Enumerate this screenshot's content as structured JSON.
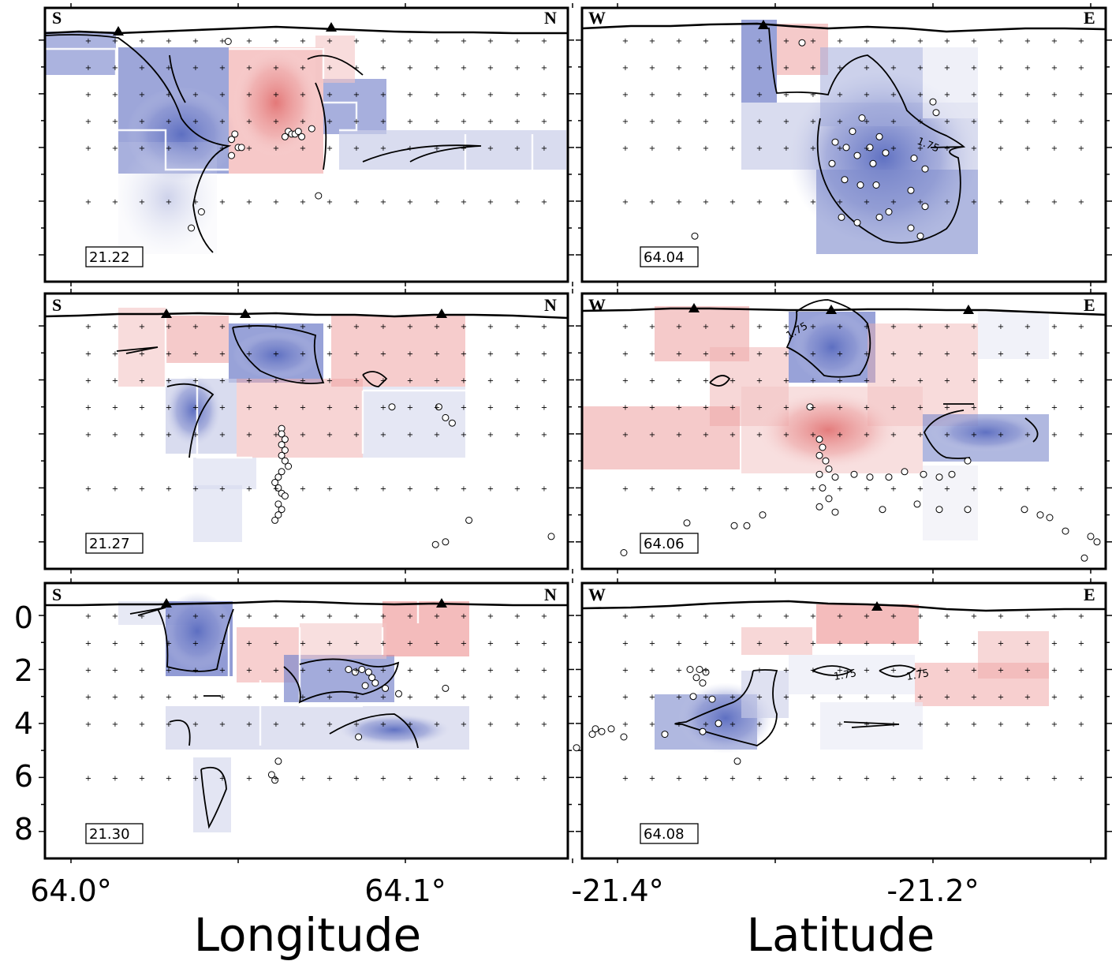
{
  "chart_data": {
    "type": "cross-section panels (velocity ratio anomaly)",
    "colors": {
      "positive": "#e06a6a",
      "negative": "#5a6cc0",
      "contour": "#000000",
      "earthquake_fill": "#ffffff"
    },
    "contour_label": "1.75",
    "depth_axis": {
      "ticks": [
        "0",
        "2",
        "4",
        "6",
        "8"
      ],
      "range": [
        -1.2,
        9.0
      ],
      "inverted": true
    },
    "columns": [
      {
        "title": "Longitude",
        "tick_labels": [
          "64.0°",
          "64.1°"
        ],
        "left_end": "S",
        "right_end": "N",
        "panels": [
          {
            "slice": "21.22",
            "earthquakes": [
              [
                64.047,
                0.05
              ],
              [
                64.049,
                3.5
              ],
              [
                64.048,
                3.7
              ],
              [
                64.05,
                4.0
              ],
              [
                64.051,
                4.0
              ],
              [
                64.048,
                4.3
              ],
              [
                64.064,
                3.6
              ],
              [
                64.065,
                3.4
              ],
              [
                64.066,
                3.5
              ],
              [
                64.067,
                3.5
              ],
              [
                64.068,
                3.4
              ],
              [
                64.069,
                3.6
              ],
              [
                64.072,
                3.3
              ],
              [
                64.074,
                5.8
              ],
              [
                64.039,
                6.4
              ],
              [
                64.036,
                7.0
              ]
            ]
          },
          {
            "slice": "21.27",
            "earthquakes": [
              [
                64.063,
                3.8
              ],
              [
                64.063,
                4.0
              ],
              [
                64.064,
                4.2
              ],
              [
                64.063,
                4.4
              ],
              [
                64.064,
                4.6
              ],
              [
                64.063,
                4.8
              ],
              [
                64.064,
                5.0
              ],
              [
                64.065,
                5.2
              ],
              [
                64.063,
                5.4
              ],
              [
                64.062,
                5.6
              ],
              [
                64.061,
                5.8
              ],
              [
                64.062,
                6.0
              ],
              [
                64.063,
                6.2
              ],
              [
                64.064,
                6.3
              ],
              [
                64.062,
                6.6
              ],
              [
                64.063,
                6.8
              ],
              [
                64.062,
                7.0
              ],
              [
                64.061,
                7.2
              ],
              [
                64.096,
                3.0
              ],
              [
                64.11,
                3.0
              ],
              [
                64.112,
                3.4
              ],
              [
                64.114,
                3.6
              ],
              [
                64.119,
                7.2
              ],
              [
                64.112,
                8.0
              ],
              [
                64.109,
                8.1
              ]
            ]
          },
          {
            "slice": "21.30",
            "earthquakes": [
              [
                64.083,
                2.0
              ],
              [
                64.085,
                2.1
              ],
              [
                64.087,
                2.0
              ],
              [
                64.089,
                2.1
              ],
              [
                64.09,
                2.3
              ],
              [
                64.091,
                2.5
              ],
              [
                64.088,
                2.6
              ],
              [
                64.094,
                2.7
              ],
              [
                64.098,
                2.9
              ],
              [
                64.112,
                2.7
              ],
              [
                64.086,
                4.5
              ],
              [
                64.062,
                5.4
              ],
              [
                64.06,
                5.9
              ],
              [
                64.061,
                6.1
              ]
            ]
          }
        ]
      },
      {
        "title": "Latitude",
        "tick_labels": [
          "-21.4°",
          "-21.2°"
        ],
        "left_end": "W",
        "right_end": "E",
        "panels": [
          {
            "slice": "64.04",
            "earthquakes": [
              [
                -21.283,
                0.1
              ],
              [
                -21.2,
                2.3
              ],
              [
                -21.198,
                2.7
              ],
              [
                -21.245,
                2.9
              ],
              [
                -21.251,
                3.4
              ],
              [
                -21.234,
                3.6
              ],
              [
                -21.262,
                3.8
              ],
              [
                -21.255,
                4.0
              ],
              [
                -21.24,
                4.0
              ],
              [
                -21.23,
                4.2
              ],
              [
                -21.248,
                4.3
              ],
              [
                -21.264,
                4.6
              ],
              [
                -21.238,
                4.6
              ],
              [
                -21.212,
                4.4
              ],
              [
                -21.205,
                4.8
              ],
              [
                -21.256,
                5.2
              ],
              [
                -21.246,
                5.4
              ],
              [
                -21.236,
                5.4
              ],
              [
                -21.214,
                5.6
              ],
              [
                -21.205,
                6.2
              ],
              [
                -21.228,
                6.4
              ],
              [
                -21.258,
                6.6
              ],
              [
                -21.248,
                6.8
              ],
              [
                -21.234,
                6.6
              ],
              [
                -21.214,
                7.0
              ],
              [
                -21.208,
                7.3
              ],
              [
                -21.351,
                7.3
              ]
            ]
          },
          {
            "slice": "64.06",
            "earthquakes": [
              [
                -21.278,
                3.0
              ],
              [
                -21.272,
                4.2
              ],
              [
                -21.27,
                4.5
              ],
              [
                -21.272,
                4.8
              ],
              [
                -21.268,
                5.0
              ],
              [
                -21.266,
                5.3
              ],
              [
                -21.272,
                5.5
              ],
              [
                -21.262,
                5.6
              ],
              [
                -21.25,
                5.5
              ],
              [
                -21.24,
                5.6
              ],
              [
                -21.228,
                5.6
              ],
              [
                -21.218,
                5.4
              ],
              [
                -21.206,
                5.5
              ],
              [
                -21.196,
                5.6
              ],
              [
                -21.188,
                5.5
              ],
              [
                -21.178,
                5.0
              ],
              [
                -21.27,
                6.0
              ],
              [
                -21.266,
                6.4
              ],
              [
                -21.272,
                6.7
              ],
              [
                -21.262,
                6.9
              ],
              [
                -21.232,
                6.8
              ],
              [
                -21.21,
                6.6
              ],
              [
                -21.178,
                6.8
              ],
              [
                -21.142,
                6.8
              ],
              [
                -21.132,
                7.0
              ],
              [
                -21.126,
                7.1
              ],
              [
                -21.116,
                7.6
              ],
              [
                -21.1,
                7.8
              ],
              [
                -21.096,
                8.0
              ],
              [
                -21.104,
                8.6
              ],
              [
                -21.356,
                7.3
              ],
              [
                -21.326,
                7.4
              ],
              [
                -21.318,
                7.4
              ],
              [
                -21.308,
                7.0
              ],
              [
                -21.442,
                7.8
              ],
              [
                -21.396,
                8.4
              ],
              [
                -21.196,
                6.8
              ]
            ]
          },
          {
            "slice": "64.08",
            "earthquakes": [
              [
                -21.354,
                2.0
              ],
              [
                -21.348,
                2.0
              ],
              [
                -21.344,
                2.1
              ],
              [
                -21.35,
                2.3
              ],
              [
                -21.346,
                2.5
              ],
              [
                -21.352,
                3.0
              ],
              [
                -21.34,
                3.1
              ],
              [
                -21.336,
                4.0
              ],
              [
                -21.346,
                4.3
              ],
              [
                -21.37,
                4.4
              ],
              [
                -21.396,
                4.5
              ],
              [
                -21.404,
                4.2
              ],
              [
                -21.41,
                4.3
              ],
              [
                -21.414,
                4.2
              ],
              [
                -21.416,
                4.4
              ],
              [
                -21.426,
                4.9
              ],
              [
                -21.324,
                5.4
              ]
            ]
          }
        ]
      }
    ]
  }
}
